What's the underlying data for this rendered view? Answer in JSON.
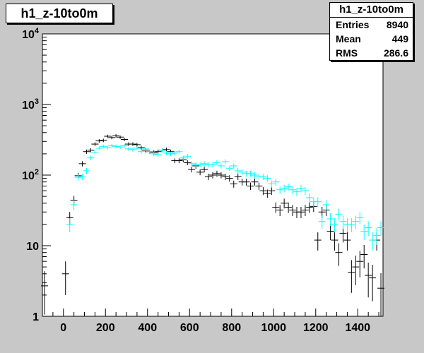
{
  "histogram": {
    "title": "h1_z-10to0m",
    "stats": {
      "name": "h1_z-10to0m",
      "rows": [
        {
          "label": "Entries",
          "value": "8940"
        },
        {
          "label": "Mean",
          "value": "449"
        },
        {
          "label": "RMS",
          "value": "286.6"
        }
      ]
    }
  },
  "chart_data": {
    "type": "scatter",
    "title": "h1_z-10to0m",
    "xlabel": "",
    "ylabel": "",
    "xlim": [
      -100,
      1520
    ],
    "ylim": [
      1,
      10000
    ],
    "y_scale": "log",
    "grid": false,
    "x_ticks": [
      "0",
      "200",
      "400",
      "600",
      "800",
      "1000",
      "1200",
      "1400"
    ],
    "x_tick_values": [
      0,
      200,
      400,
      600,
      800,
      1000,
      1200,
      1400
    ],
    "y_ticks": [
      {
        "value": 1,
        "base": "1",
        "exp": ""
      },
      {
        "value": 10,
        "base": "10",
        "exp": ""
      },
      {
        "value": 100,
        "base": "10",
        "exp": "2"
      },
      {
        "value": 1000,
        "base": "10",
        "exp": "3"
      },
      {
        "value": 10000,
        "base": "10",
        "exp": "4"
      }
    ],
    "series": [
      {
        "color": "#000000",
        "points": [
          {
            "x": -90,
            "y": 2.7
          },
          {
            "x": 10,
            "y": 4
          },
          {
            "x": 30,
            "y": 25
          },
          {
            "x": 50,
            "y": 44
          },
          {
            "x": 70,
            "y": 98
          },
          {
            "x": 90,
            "y": 145
          },
          {
            "x": 110,
            "y": 215
          },
          {
            "x": 130,
            "y": 225
          },
          {
            "x": 150,
            "y": 275
          },
          {
            "x": 170,
            "y": 305
          },
          {
            "x": 190,
            "y": 310
          },
          {
            "x": 210,
            "y": 355
          },
          {
            "x": 230,
            "y": 340
          },
          {
            "x": 250,
            "y": 360
          },
          {
            "x": 270,
            "y": 345
          },
          {
            "x": 290,
            "y": 320
          },
          {
            "x": 310,
            "y": 275
          },
          {
            "x": 330,
            "y": 275
          },
          {
            "x": 350,
            "y": 270
          },
          {
            "x": 370,
            "y": 245
          },
          {
            "x": 390,
            "y": 225
          },
          {
            "x": 410,
            "y": 215
          },
          {
            "x": 430,
            "y": 210
          },
          {
            "x": 450,
            "y": 215
          },
          {
            "x": 470,
            "y": 225
          },
          {
            "x": 490,
            "y": 230
          },
          {
            "x": 510,
            "y": 215
          },
          {
            "x": 530,
            "y": 160
          },
          {
            "x": 550,
            "y": 160
          },
          {
            "x": 570,
            "y": 165
          },
          {
            "x": 590,
            "y": 150
          },
          {
            "x": 610,
            "y": 120
          },
          {
            "x": 630,
            "y": 135
          },
          {
            "x": 650,
            "y": 110
          },
          {
            "x": 670,
            "y": 120
          },
          {
            "x": 690,
            "y": 95
          },
          {
            "x": 710,
            "y": 100
          },
          {
            "x": 730,
            "y": 105
          },
          {
            "x": 750,
            "y": 100
          },
          {
            "x": 770,
            "y": 95
          },
          {
            "x": 790,
            "y": 90
          },
          {
            "x": 810,
            "y": 75
          },
          {
            "x": 830,
            "y": 95
          },
          {
            "x": 850,
            "y": 80
          },
          {
            "x": 870,
            "y": 80
          },
          {
            "x": 890,
            "y": 70
          },
          {
            "x": 910,
            "y": 80
          },
          {
            "x": 930,
            "y": 70
          },
          {
            "x": 950,
            "y": 60
          },
          {
            "x": 970,
            "y": 55
          },
          {
            "x": 990,
            "y": 60
          },
          {
            "x": 1010,
            "y": 35
          },
          {
            "x": 1030,
            "y": 32
          },
          {
            "x": 1050,
            "y": 40
          },
          {
            "x": 1070,
            "y": 35
          },
          {
            "x": 1090,
            "y": 32
          },
          {
            "x": 1110,
            "y": 30
          },
          {
            "x": 1130,
            "y": 30
          },
          {
            "x": 1150,
            "y": 32
          },
          {
            "x": 1170,
            "y": 35
          },
          {
            "x": 1190,
            "y": 36
          },
          {
            "x": 1210,
            "y": 12
          },
          {
            "x": 1230,
            "y": 30
          },
          {
            "x": 1250,
            "y": 32
          },
          {
            "x": 1270,
            "y": 16
          },
          {
            "x": 1290,
            "y": 12
          },
          {
            "x": 1310,
            "y": 8
          },
          {
            "x": 1330,
            "y": 15
          },
          {
            "x": 1350,
            "y": 12
          },
          {
            "x": 1370,
            "y": 4.2
          },
          {
            "x": 1390,
            "y": 5
          },
          {
            "x": 1410,
            "y": 6
          },
          {
            "x": 1430,
            "y": 7.5
          },
          {
            "x": 1450,
            "y": 3.8
          },
          {
            "x": 1470,
            "y": 3.5
          },
          {
            "x": 1490,
            "y": 12
          },
          {
            "x": 1510,
            "y": 2.5
          }
        ]
      },
      {
        "color": "#00ffff",
        "points": [
          {
            "x": 30,
            "y": 20
          },
          {
            "x": 50,
            "y": 38
          },
          {
            "x": 70,
            "y": 93
          },
          {
            "x": 90,
            "y": 95
          },
          {
            "x": 110,
            "y": 115
          },
          {
            "x": 130,
            "y": 175
          },
          {
            "x": 150,
            "y": 210
          },
          {
            "x": 170,
            "y": 240
          },
          {
            "x": 190,
            "y": 255
          },
          {
            "x": 210,
            "y": 245
          },
          {
            "x": 230,
            "y": 260
          },
          {
            "x": 250,
            "y": 255
          },
          {
            "x": 270,
            "y": 250
          },
          {
            "x": 290,
            "y": 260
          },
          {
            "x": 310,
            "y": 235
          },
          {
            "x": 330,
            "y": 230
          },
          {
            "x": 350,
            "y": 240
          },
          {
            "x": 370,
            "y": 215
          },
          {
            "x": 390,
            "y": 235
          },
          {
            "x": 410,
            "y": 215
          },
          {
            "x": 430,
            "y": 200
          },
          {
            "x": 450,
            "y": 195
          },
          {
            "x": 470,
            "y": 225
          },
          {
            "x": 490,
            "y": 205
          },
          {
            "x": 510,
            "y": 200
          },
          {
            "x": 530,
            "y": 205
          },
          {
            "x": 550,
            "y": 215
          },
          {
            "x": 570,
            "y": 175
          },
          {
            "x": 590,
            "y": 185
          },
          {
            "x": 610,
            "y": 145
          },
          {
            "x": 630,
            "y": 140
          },
          {
            "x": 650,
            "y": 140
          },
          {
            "x": 670,
            "y": 145
          },
          {
            "x": 690,
            "y": 140
          },
          {
            "x": 710,
            "y": 140
          },
          {
            "x": 730,
            "y": 150
          },
          {
            "x": 750,
            "y": 135
          },
          {
            "x": 770,
            "y": 155
          },
          {
            "x": 790,
            "y": 125
          },
          {
            "x": 810,
            "y": 135
          },
          {
            "x": 830,
            "y": 115
          },
          {
            "x": 850,
            "y": 110
          },
          {
            "x": 870,
            "y": 105
          },
          {
            "x": 890,
            "y": 105
          },
          {
            "x": 910,
            "y": 100
          },
          {
            "x": 930,
            "y": 95
          },
          {
            "x": 950,
            "y": 95
          },
          {
            "x": 970,
            "y": 90
          },
          {
            "x": 990,
            "y": 75
          },
          {
            "x": 1010,
            "y": 80
          },
          {
            "x": 1030,
            "y": 62
          },
          {
            "x": 1050,
            "y": 65
          },
          {
            "x": 1070,
            "y": 68
          },
          {
            "x": 1090,
            "y": 62
          },
          {
            "x": 1110,
            "y": 58
          },
          {
            "x": 1130,
            "y": 65
          },
          {
            "x": 1150,
            "y": 60
          },
          {
            "x": 1170,
            "y": 48
          },
          {
            "x": 1190,
            "y": 42
          },
          {
            "x": 1210,
            "y": 42
          },
          {
            "x": 1230,
            "y": 22
          },
          {
            "x": 1250,
            "y": 38
          },
          {
            "x": 1270,
            "y": 24
          },
          {
            "x": 1290,
            "y": 20
          },
          {
            "x": 1310,
            "y": 28
          },
          {
            "x": 1330,
            "y": 22
          },
          {
            "x": 1350,
            "y": 20
          },
          {
            "x": 1370,
            "y": 20
          },
          {
            "x": 1390,
            "y": 22
          },
          {
            "x": 1410,
            "y": 25
          },
          {
            "x": 1430,
            "y": 16
          },
          {
            "x": 1450,
            "y": 18
          },
          {
            "x": 1470,
            "y": 12
          },
          {
            "x": 1490,
            "y": 14
          },
          {
            "x": 1510,
            "y": 18
          }
        ]
      }
    ]
  }
}
